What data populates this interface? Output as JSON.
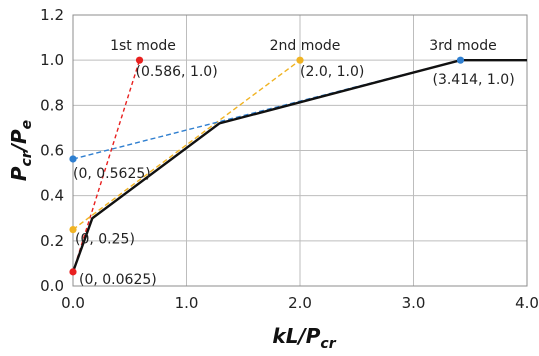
{
  "chart_data": {
    "type": "line",
    "xlabel": {
      "main": "kL/P",
      "sub": "cr"
    },
    "ylabel": {
      "main": "P",
      "sub": "cr",
      "sep": "/P",
      "sub2": "e"
    },
    "xlim": [
      0,
      4.0
    ],
    "ylim": [
      0,
      1.2
    ],
    "x_ticks": [
      {
        "value": 0,
        "label": "0.0"
      },
      {
        "value": 1,
        "label": "1.0"
      },
      {
        "value": 2,
        "label": "2.0"
      },
      {
        "value": 3,
        "label": "3.0"
      },
      {
        "value": 4,
        "label": "4.0"
      }
    ],
    "y_ticks": [
      {
        "value": 0,
        "label": "0.0"
      },
      {
        "value": 0.2,
        "label": "0.2"
      },
      {
        "value": 0.4,
        "label": "0.4"
      },
      {
        "value": 0.6,
        "label": "0.6"
      },
      {
        "value": 0.8,
        "label": "0.8"
      },
      {
        "value": 1.0,
        "label": "1.0"
      },
      {
        "value": 1.2,
        "label": "1.2"
      }
    ],
    "grid": true,
    "series": [
      {
        "name": "1st mode",
        "color": "#e8201f",
        "dash": "4,3",
        "points": [
          [
            0,
            0.0625
          ],
          [
            0.586,
            1.0
          ]
        ],
        "markers": [
          {
            "x": 0,
            "y": 0.0625,
            "label": "(0, 0.0625)"
          },
          {
            "x": 0.586,
            "y": 1.0,
            "label": "(0.586, 1.0)"
          }
        ]
      },
      {
        "name": "2nd mode",
        "color": "#f0b323",
        "dash": "5,3",
        "points": [
          [
            0,
            0.25
          ],
          [
            2.0,
            1.0
          ]
        ],
        "markers": [
          {
            "x": 0,
            "y": 0.25,
            "label": "(0, 0.25)"
          },
          {
            "x": 2.0,
            "y": 1.0,
            "label": "(2.0, 1.0)"
          }
        ]
      },
      {
        "name": "3rd mode",
        "color": "#2f7fd0",
        "dash": "5,3",
        "points": [
          [
            0,
            0.5625
          ],
          [
            3.414,
            1.0
          ]
        ],
        "markers": [
          {
            "x": 0,
            "y": 0.5625,
            "label": "(0, 0.5625)"
          },
          {
            "x": 3.414,
            "y": 1.0,
            "label": "(3.414, 1.0)"
          }
        ]
      },
      {
        "name": "",
        "color": "#111111",
        "dash": "",
        "points": [
          [
            0,
            0.0625
          ],
          [
            0.17,
            0.3
          ],
          [
            1.29,
            0.72
          ],
          [
            3.414,
            1.0
          ],
          [
            4.0,
            1.0
          ]
        ],
        "markers": []
      }
    ]
  }
}
